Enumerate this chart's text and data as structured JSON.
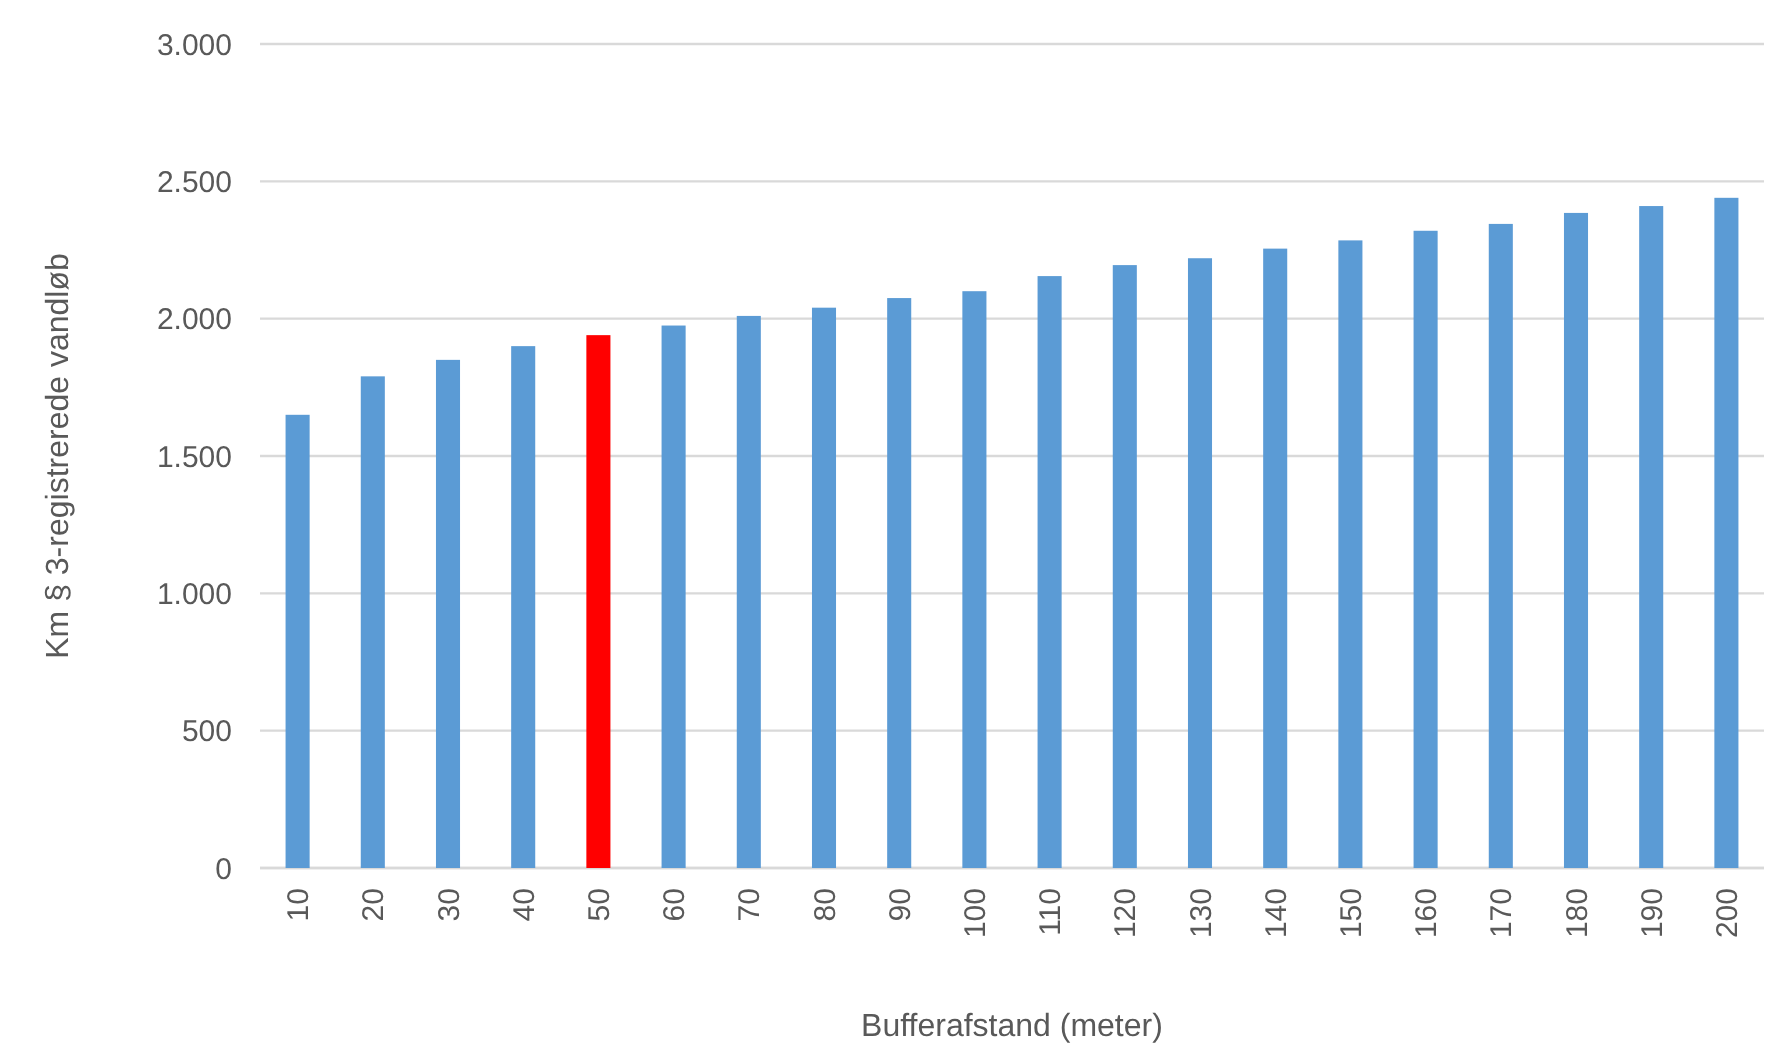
{
  "chart_data": {
    "type": "bar",
    "xlabel": "Bufferafstand (meter)",
    "ylabel": "Km § 3-registrerede vandløb",
    "categories": [
      "10",
      "20",
      "30",
      "40",
      "50",
      "60",
      "70",
      "80",
      "90",
      "100",
      "110",
      "120",
      "130",
      "140",
      "150",
      "160",
      "170",
      "180",
      "190",
      "200"
    ],
    "values": [
      1650,
      1790,
      1850,
      1900,
      1940,
      1975,
      2010,
      2040,
      2075,
      2100,
      2155,
      2195,
      2220,
      2255,
      2285,
      2320,
      2345,
      2385,
      2410,
      2440
    ],
    "colors": [
      "#5b9bd5",
      "#5b9bd5",
      "#5b9bd5",
      "#5b9bd5",
      "#ff0000",
      "#5b9bd5",
      "#5b9bd5",
      "#5b9bd5",
      "#5b9bd5",
      "#5b9bd5",
      "#5b9bd5",
      "#5b9bd5",
      "#5b9bd5",
      "#5b9bd5",
      "#5b9bd5",
      "#5b9bd5",
      "#5b9bd5",
      "#5b9bd5",
      "#5b9bd5",
      "#5b9bd5"
    ],
    "ylim": [
      0,
      3000
    ],
    "yticks": [
      {
        "value": 0,
        "label": "0"
      },
      {
        "value": 500,
        "label": "500"
      },
      {
        "value": 1000,
        "label": "1.000"
      },
      {
        "value": 1500,
        "label": "1.500"
      },
      {
        "value": 2000,
        "label": "2.000"
      },
      {
        "value": 2500,
        "label": "2.500"
      },
      {
        "value": 3000,
        "label": "3.000"
      }
    ],
    "grid": "y"
  }
}
